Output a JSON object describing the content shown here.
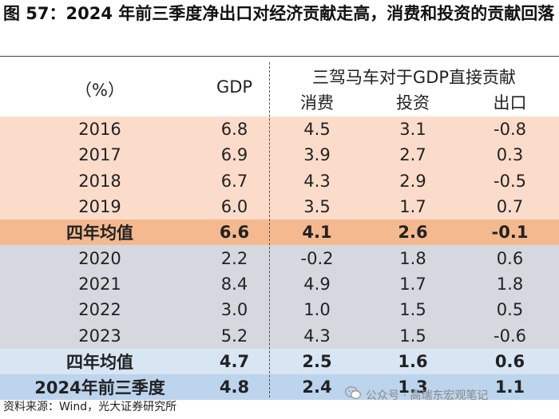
{
  "title": "图 57：2024 年前三季度净出口对经济贡献走高，消费和投资的贡献回落",
  "header": {
    "unit": "（%）",
    "gdp": "GDP",
    "group": "三驾马车对于GDP直接贡献",
    "consumption": "消费",
    "investment": "投资",
    "exports": "出口"
  },
  "rows": [
    {
      "label": "2016",
      "gdp": "6.8",
      "consumption": "4.5",
      "investment": "3.1",
      "exports": "-0.8"
    },
    {
      "label": "2017",
      "gdp": "6.9",
      "consumption": "3.9",
      "investment": "2.7",
      "exports": "0.3"
    },
    {
      "label": "2018",
      "gdp": "6.7",
      "consumption": "4.3",
      "investment": "2.9",
      "exports": "-0.5"
    },
    {
      "label": "2019",
      "gdp": "6.0",
      "consumption": "3.5",
      "investment": "1.7",
      "exports": "0.7"
    },
    {
      "label": "四年均值",
      "gdp": "6.6",
      "consumption": "4.1",
      "investment": "2.6",
      "exports": "-0.1"
    },
    {
      "label": "2020",
      "gdp": "2.2",
      "consumption": "-0.2",
      "investment": "1.8",
      "exports": "0.6"
    },
    {
      "label": "2021",
      "gdp": "8.4",
      "consumption": "4.9",
      "investment": "1.7",
      "exports": "1.8"
    },
    {
      "label": "2022",
      "gdp": "3.0",
      "consumption": "1.0",
      "investment": "1.5",
      "exports": "0.5"
    },
    {
      "label": "2023",
      "gdp": "5.2",
      "consumption": "4.3",
      "investment": "1.5",
      "exports": "-0.6"
    },
    {
      "label": "四年均值",
      "gdp": "4.7",
      "consumption": "2.5",
      "investment": "1.6",
      "exports": "0.6"
    },
    {
      "label": "2024年前三季度",
      "gdp": "4.8",
      "consumption": "2.4",
      "investment": "1.3",
      "exports": "1.1"
    }
  ],
  "source": "资料来源：Wind，光大证券研究所",
  "watermark": "公众号 · 高瑞东宏观笔记"
}
